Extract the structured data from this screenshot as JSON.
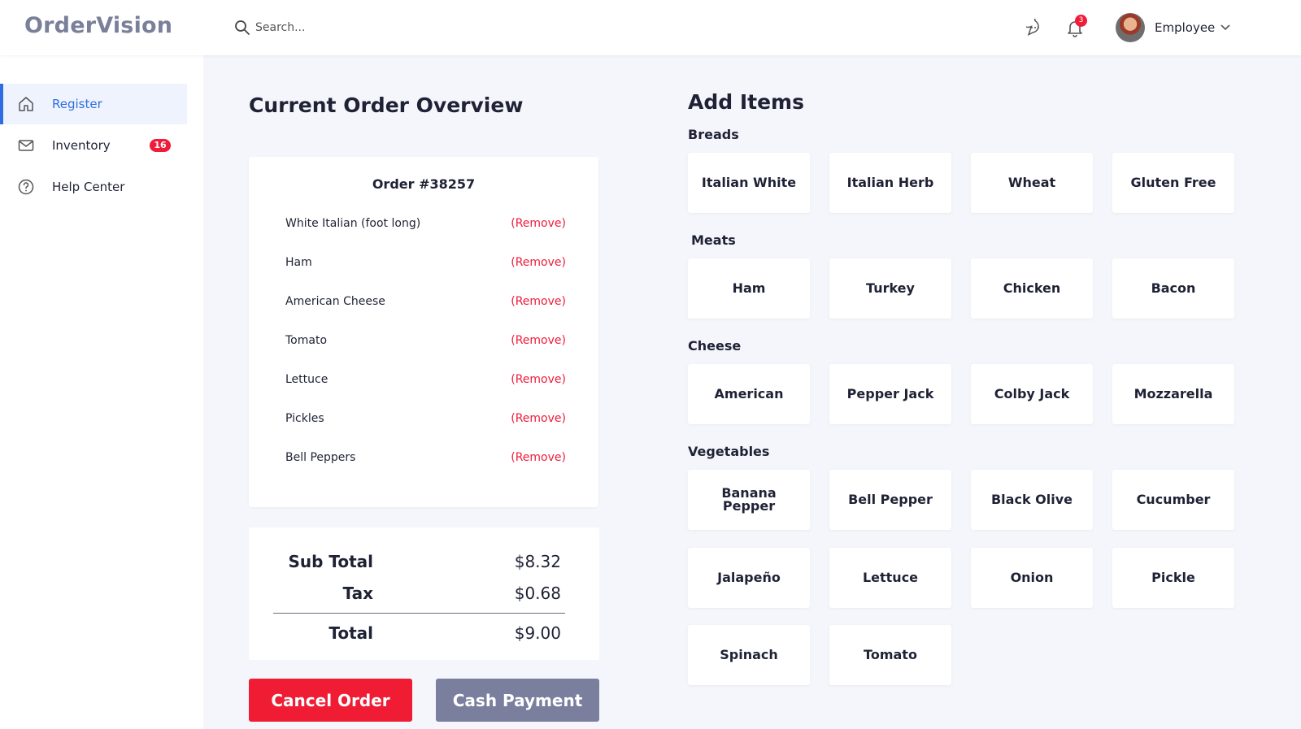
{
  "app": {
    "logo": "OrderVision"
  },
  "header": {
    "search_placeholder": "Search...",
    "notification_count": "3",
    "user_label": "Employee"
  },
  "sidebar": {
    "items": [
      {
        "label": "Register",
        "icon": "home-icon",
        "active": true
      },
      {
        "label": "Inventory",
        "icon": "mail-icon",
        "badge": "16"
      },
      {
        "label": "Help Center",
        "icon": "help-icon"
      }
    ]
  },
  "order": {
    "section_title": "Current Order Overview",
    "title": "Order #38257",
    "remove_label": "(Remove)",
    "items": [
      "White Italian (foot long)",
      "Ham",
      "American Cheese",
      "Tomato",
      "Lettuce",
      "Pickles",
      "Bell Peppers"
    ]
  },
  "totals": {
    "subtotal_label": "Sub Total",
    "subtotal": "$8.32",
    "tax_label": "Tax",
    "tax": "$0.68",
    "total_label": "Total",
    "total": "$9.00"
  },
  "actions": {
    "cancel": "Cancel Order",
    "cash": "Cash Payment"
  },
  "add_items": {
    "title": "Add Items",
    "categories": [
      {
        "name": "Breads",
        "items": [
          "Italian White",
          "Italian Herb",
          "Wheat",
          "Gluten Free"
        ]
      },
      {
        "name": "Meats",
        "items": [
          "Ham",
          "Turkey",
          "Chicken",
          "Bacon"
        ]
      },
      {
        "name": "Cheese",
        "items": [
          "American",
          "Pepper Jack",
          "Colby Jack",
          "Mozzarella"
        ]
      },
      {
        "name": "Vegetables",
        "items": [
          "Banana Pepper",
          "Bell Pepper",
          "Black Olive",
          "Cucumber",
          "Jalapeño",
          "Lettuce",
          "Onion",
          "Pickle",
          "Spinach",
          "Tomato"
        ]
      }
    ]
  },
  "colors": {
    "accent": "#2f6ee0",
    "danger": "#ef1c34",
    "muted_button": "#7a7f9e",
    "background": "#f4f6fb"
  }
}
